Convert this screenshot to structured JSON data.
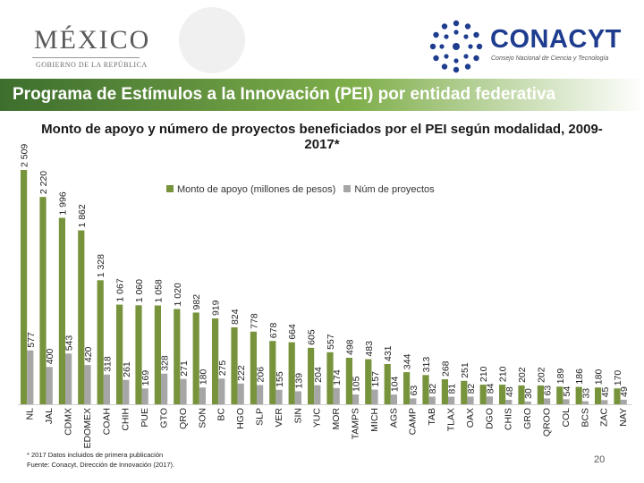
{
  "header": {
    "mexico_word": "MÉXICO",
    "mexico_subtitle": "GOBIERNO DE LA REPÚBLICA",
    "conacyt_word": "CONACYT",
    "conacyt_subtitle": "Consejo Nacional de Ciencia y Tecnología"
  },
  "banner": {
    "title": "Programa de Estímulos a la Innovación (PEI) por entidad federativa"
  },
  "footnote": {
    "line1": "* 2017 Datos incluidos de primera publicación",
    "line2": "Fuente: Conacyt, Dirección de Innovación (2017)."
  },
  "page_number": "20",
  "colors": {
    "monto": "#77933c",
    "proyectos": "#a6a6a6",
    "banner_dark": "#3d6e2d",
    "brand_blue": "#1f3d8f"
  },
  "chart_data": {
    "type": "bar",
    "title": "Monto de apoyo y número de proyectos beneficiados por el PEI según modalidad, 2009-2017*",
    "xlabel": "",
    "ylabel": "",
    "ylim": [
      0,
      2509
    ],
    "legend_position": "top-center",
    "categories": [
      "NL",
      "JAL",
      "CDMX",
      "EDOMEX",
      "COAH",
      "CHIH",
      "PUE",
      "GTO",
      "QRO",
      "SON",
      "BC",
      "HGO",
      "SLP",
      "VER",
      "SIN",
      "YUC",
      "MOR",
      "TAMPS",
      "MICH",
      "AGS",
      "CAMP",
      "TAB",
      "TLAX",
      "OAX",
      "DGO",
      "CHIS",
      "GRO",
      "QROO",
      "COL",
      "BCS",
      "ZAC",
      "NAY"
    ],
    "series": [
      {
        "name": "Monto de apoyo (millones de pesos)",
        "labels": [
          "2 509",
          "2 220",
          "1 996",
          "1 862",
          "1 328",
          "1 067",
          "1 060",
          "1 058",
          "1 020",
          "982",
          "919",
          "824",
          "778",
          "678",
          "664",
          "605",
          "557",
          "498",
          "483",
          "431",
          "344",
          "313",
          "268",
          "251",
          "210",
          "210",
          "202",
          "202",
          "189",
          "186",
          "180",
          "170"
        ],
        "values": [
          2509,
          2220,
          1996,
          1862,
          1328,
          1067,
          1060,
          1058,
          1020,
          982,
          919,
          824,
          778,
          678,
          664,
          605,
          557,
          498,
          483,
          431,
          344,
          313,
          268,
          251,
          210,
          210,
          202,
          202,
          189,
          186,
          180,
          170
        ]
      },
      {
        "name": "Núm de proyectos",
        "labels": [
          "577",
          "400",
          "543",
          "420",
          "318",
          "261",
          "169",
          "328",
          "271",
          "180",
          "275",
          "222",
          "206",
          "155",
          "139",
          "204",
          "174",
          "105",
          "157",
          "104",
          "63",
          "82",
          "81",
          "82",
          "84",
          "48",
          "30",
          "63",
          "54",
          "33",
          "45",
          "49"
        ],
        "values": [
          577,
          400,
          543,
          420,
          318,
          261,
          169,
          328,
          271,
          180,
          275,
          222,
          206,
          155,
          139,
          204,
          174,
          105,
          157,
          104,
          63,
          82,
          81,
          82,
          84,
          48,
          30,
          63,
          54,
          33,
          45,
          49
        ]
      }
    ]
  }
}
